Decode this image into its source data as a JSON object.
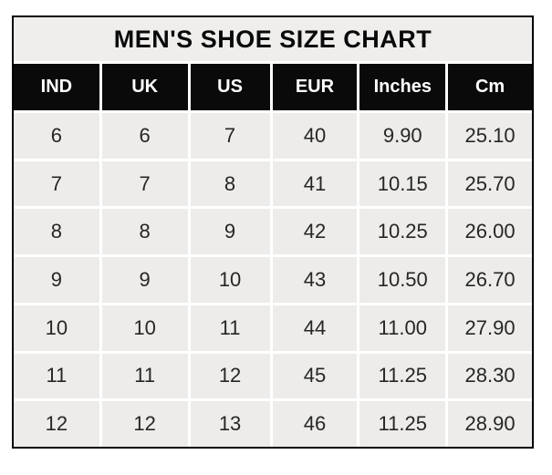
{
  "title": "MEN'S SHOE SIZE CHART",
  "colors": {
    "header_bg": "#0a0a0a",
    "header_text": "#ffffff",
    "cell_bg": "#edecea",
    "title_bg": "#efeeec",
    "border": "#000000",
    "separator": "#ffffff",
    "cell_text": "#262626",
    "title_text": "#0a0a0a"
  },
  "chart_data": {
    "type": "table",
    "title": "MEN'S SHOE SIZE CHART",
    "columns": [
      "IND",
      "UK",
      "US",
      "EUR",
      "Inches",
      "Cm"
    ],
    "rows": [
      [
        "6",
        "6",
        "7",
        "40",
        "9.90",
        "25.10"
      ],
      [
        "7",
        "7",
        "8",
        "41",
        "10.15",
        "25.70"
      ],
      [
        "8",
        "8",
        "9",
        "42",
        "10.25",
        "26.00"
      ],
      [
        "9",
        "9",
        "10",
        "43",
        "10.50",
        "26.70"
      ],
      [
        "10",
        "10",
        "11",
        "44",
        "11.00",
        "27.90"
      ],
      [
        "11",
        "11",
        "12",
        "45",
        "11.25",
        "28.30"
      ],
      [
        "12",
        "12",
        "13",
        "46",
        "11.25",
        "28.90"
      ]
    ],
    "layout": {
      "grid": "white separators between cells",
      "header_style": "black background, white bold text",
      "outer_border": "thin black"
    }
  }
}
